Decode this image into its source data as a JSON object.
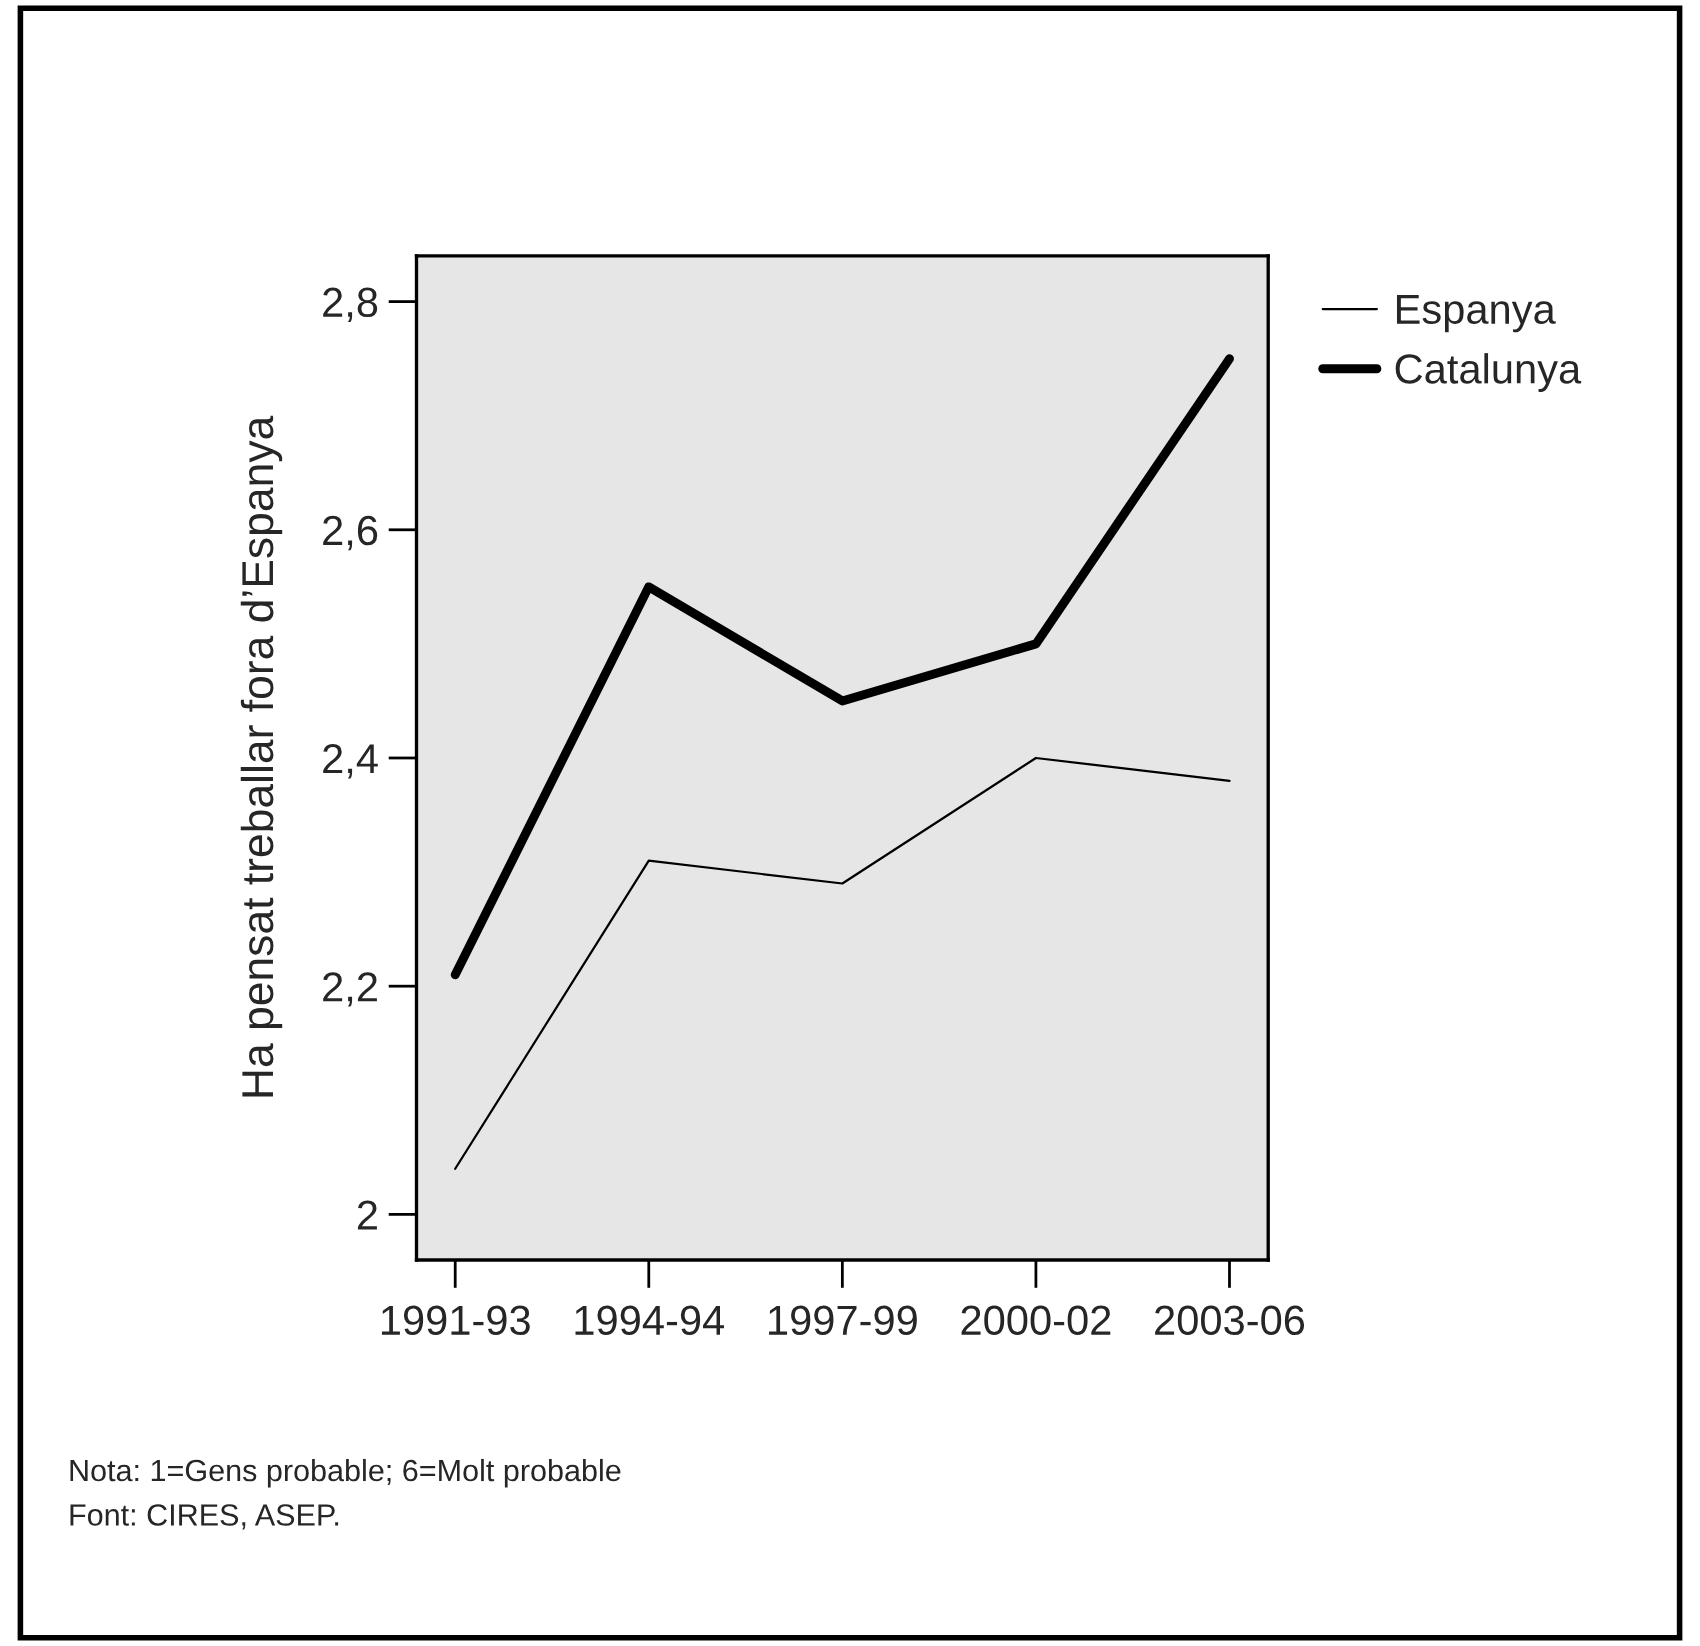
{
  "chart_data": {
    "type": "line",
    "ylabel": "Ha pensat treballar fora d’Espanya",
    "categories": [
      "1991-93",
      "1994-94",
      "1997-99",
      "2000-02",
      "2003-06"
    ],
    "series": [
      {
        "name": "Espanya",
        "color": "#000000",
        "values": [
          2.04,
          2.31,
          2.29,
          2.4,
          2.38
        ]
      },
      {
        "name": "Catalunya",
        "color": "#000000",
        "values": [
          2.21,
          2.55,
          2.45,
          2.5,
          2.75
        ]
      }
    ],
    "ylim": [
      1.96,
      2.84
    ],
    "yticks": [
      {
        "value": 2,
        "label": "2"
      },
      {
        "value": 2.2,
        "label": "2,2"
      },
      {
        "value": 2.4,
        "label": "2,4"
      },
      {
        "value": 2.6,
        "label": "2,6"
      },
      {
        "value": 2.8,
        "label": "2,8"
      }
    ],
    "grid": false,
    "legend": "right",
    "marker": "none",
    "line_style": "solid",
    "annotations": [
      "Nota: 1=Gens probable; 6=Molt probable",
      "Font: CIRES, ASEP."
    ]
  }
}
